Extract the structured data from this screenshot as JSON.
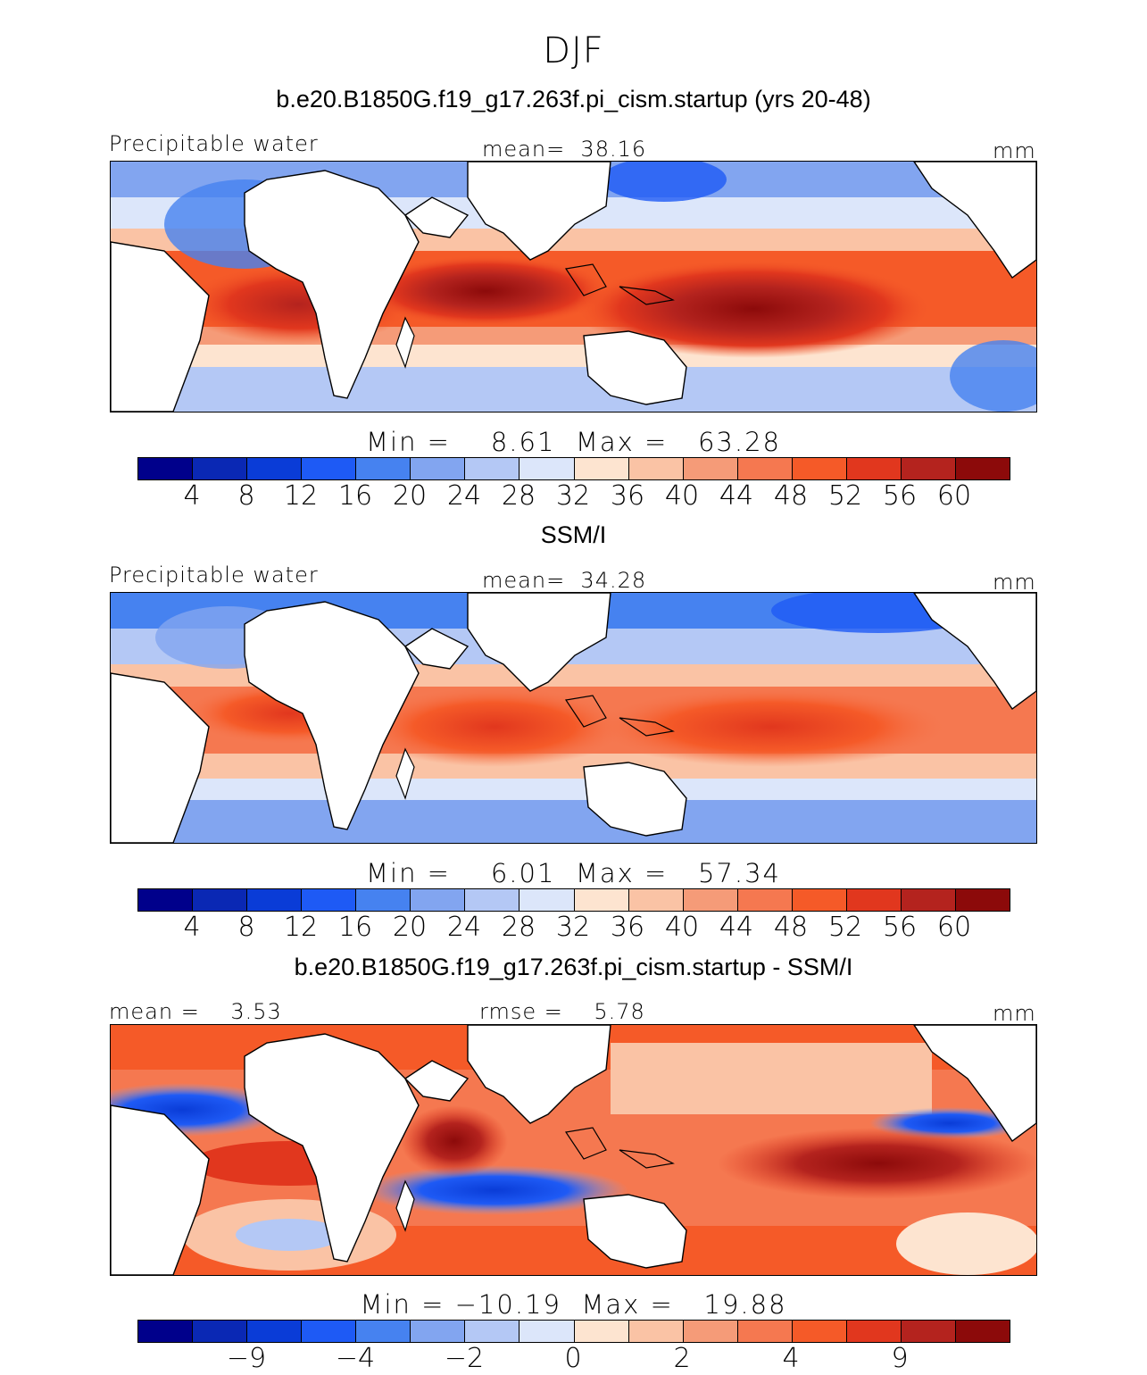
{
  "season": "DJF",
  "panels": [
    {
      "title": "b.e20.B1850G.f19_g17.263f.pi_cism.startup (yrs 20-48)",
      "left_label": "Precipitable water",
      "center_label": "mean=  38.16",
      "units": "mm",
      "minmax": "Min =    8.61  Max =   63.28",
      "colorbar_ticks": [
        "4",
        "8",
        "12",
        "16",
        "20",
        "24",
        "28",
        "32",
        "36",
        "40",
        "44",
        "48",
        "52",
        "56",
        "60"
      ]
    },
    {
      "title": "SSM/I",
      "left_label": "Precipitable water",
      "center_label": "mean=  34.28",
      "units": "mm",
      "minmax": "Min =    6.01  Max =   57.34",
      "colorbar_ticks": [
        "4",
        "8",
        "12",
        "16",
        "20",
        "24",
        "28",
        "32",
        "36",
        "40",
        "44",
        "48",
        "52",
        "56",
        "60"
      ]
    },
    {
      "title": "b.e20.B1850G.f19_g17.263f.pi_cism.startup - SSM/I",
      "left_label": "mean =    3.53",
      "center_label": "rmse =    5.78",
      "units": "mm",
      "minmax": "Min = −10.19  Max =   19.88",
      "colorbar_ticks": [
        "−9",
        "−4",
        "−2",
        "0",
        "2",
        "4",
        "9"
      ]
    }
  ],
  "palette": [
    "#00008b",
    "#0a28b4",
    "#0a3cd7",
    "#1e5af5",
    "#4682f0",
    "#82a5f0",
    "#b4c8f5",
    "#dce6fa",
    "#fde4d0",
    "#fac3a5",
    "#f59b78",
    "#f57850",
    "#f55a28",
    "#e1371e",
    "#b4231e",
    "#8c0a0a"
  ]
}
